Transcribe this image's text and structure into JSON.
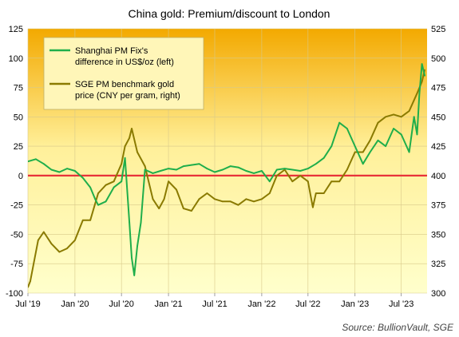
{
  "chart_data": {
    "type": "line",
    "title": "China gold: Premium/discount  to London",
    "source_label": "Source: ",
    "source_text": "BullionVault, SGE",
    "legend_placement": "top-left",
    "background": {
      "top": "#f3a900",
      "mid": "#fff09a",
      "bottom": "#ffffcc"
    },
    "zero_line_color": "#e8333a",
    "grid": true,
    "x_ticks": [
      "Jul '19",
      "Jan '20",
      "Jul '20",
      "Jan '21",
      "Jul '21",
      "Jan '22",
      "Jul '22",
      "Jan '23",
      "Jul '23"
    ],
    "y_left": {
      "ylim": [
        -100,
        125
      ],
      "ticks": [
        "-100",
        "-75",
        "-50",
        "-25",
        "0",
        "25",
        "50",
        "75",
        "100",
        "125"
      ]
    },
    "y_right": {
      "ylim": [
        300,
        525
      ],
      "ticks": [
        "300",
        "325",
        "350",
        "375",
        "400",
        "425",
        "450",
        "475",
        "500",
        "525"
      ]
    },
    "series": [
      {
        "name": "Shanghai PM Fix's\ndifference in US$/oz (left)",
        "legend_lines": [
          "Shanghai PM Fix's",
          "difference in US$/oz (left)"
        ],
        "axis": "left",
        "color": "#1fae4b",
        "x": [
          "2019-07-01",
          "2019-08-01",
          "2019-09-01",
          "2019-10-01",
          "2019-11-01",
          "2019-12-01",
          "2020-01-01",
          "2020-02-01",
          "2020-03-01",
          "2020-03-20",
          "2020-04-01",
          "2020-05-01",
          "2020-06-01",
          "2020-07-01",
          "2020-07-15",
          "2020-08-01",
          "2020-08-10",
          "2020-08-20",
          "2020-09-01",
          "2020-09-15",
          "2020-10-01",
          "2020-11-01",
          "2020-12-01",
          "2021-01-01",
          "2021-02-01",
          "2021-03-01",
          "2021-04-01",
          "2021-05-01",
          "2021-06-01",
          "2021-07-01",
          "2021-08-01",
          "2021-09-01",
          "2021-10-01",
          "2021-11-01",
          "2021-12-01",
          "2022-01-01",
          "2022-02-01",
          "2022-03-01",
          "2022-04-01",
          "2022-05-01",
          "2022-06-01",
          "2022-07-01",
          "2022-08-01",
          "2022-09-01",
          "2022-10-01",
          "2022-11-01",
          "2022-12-01",
          "2023-01-01",
          "2023-02-01",
          "2023-03-01",
          "2023-04-01",
          "2023-05-01",
          "2023-06-01",
          "2023-07-01",
          "2023-08-01",
          "2023-08-20",
          "2023-09-01",
          "2023-09-10",
          "2023-09-20",
          "2023-10-01"
        ],
        "values": [
          12,
          14,
          10,
          5,
          3,
          6,
          4,
          -2,
          -10,
          -20,
          -25,
          -22,
          -10,
          -5,
          15,
          -40,
          -70,
          -85,
          -60,
          -40,
          5,
          2,
          4,
          6,
          5,
          8,
          9,
          10,
          6,
          3,
          5,
          8,
          7,
          4,
          2,
          4,
          -5,
          5,
          6,
          5,
          4,
          6,
          10,
          15,
          25,
          45,
          40,
          25,
          10,
          20,
          30,
          25,
          40,
          35,
          20,
          50,
          35,
          70,
          95,
          85
        ]
      },
      {
        "name": "SGE PM benchmark gold\nprice (CNY per gram, right)",
        "legend_lines": [
          "SGE PM benchmark gold",
          "price (CNY per gram, right)"
        ],
        "axis": "right",
        "color": "#8a7a00",
        "x": [
          "2019-07-01",
          "2019-07-10",
          "2019-08-10",
          "2019-09-01",
          "2019-10-01",
          "2019-11-01",
          "2019-12-01",
          "2020-01-01",
          "2020-02-01",
          "2020-03-01",
          "2020-04-01",
          "2020-05-01",
          "2020-06-01",
          "2020-07-01",
          "2020-07-15",
          "2020-08-01",
          "2020-08-10",
          "2020-09-01",
          "2020-10-01",
          "2020-11-01",
          "2020-11-25",
          "2020-12-15",
          "2021-01-01",
          "2021-02-01",
          "2021-03-01",
          "2021-04-01",
          "2021-05-01",
          "2021-06-01",
          "2021-07-01",
          "2021-08-01",
          "2021-09-01",
          "2021-10-01",
          "2021-11-01",
          "2021-12-01",
          "2022-01-01",
          "2022-02-01",
          "2022-03-01",
          "2022-04-01",
          "2022-05-01",
          "2022-06-01",
          "2022-07-01",
          "2022-07-20",
          "2022-08-01",
          "2022-09-01",
          "2022-10-01",
          "2022-11-01",
          "2022-12-01",
          "2023-01-01",
          "2023-02-01",
          "2023-03-01",
          "2023-04-01",
          "2023-05-01",
          "2023-06-01",
          "2023-07-01",
          "2023-08-01",
          "2023-09-01",
          "2023-09-20",
          "2023-10-01"
        ],
        "values": [
          305,
          310,
          345,
          352,
          342,
          335,
          338,
          345,
          362,
          362,
          385,
          392,
          395,
          410,
          425,
          432,
          440,
          420,
          408,
          380,
          372,
          380,
          395,
          388,
          372,
          370,
          380,
          385,
          380,
          378,
          378,
          375,
          380,
          378,
          380,
          385,
          400,
          405,
          395,
          400,
          395,
          373,
          385,
          385,
          395,
          395,
          405,
          420,
          420,
          430,
          445,
          450,
          452,
          450,
          455,
          470,
          480,
          490
        ]
      }
    ]
  }
}
